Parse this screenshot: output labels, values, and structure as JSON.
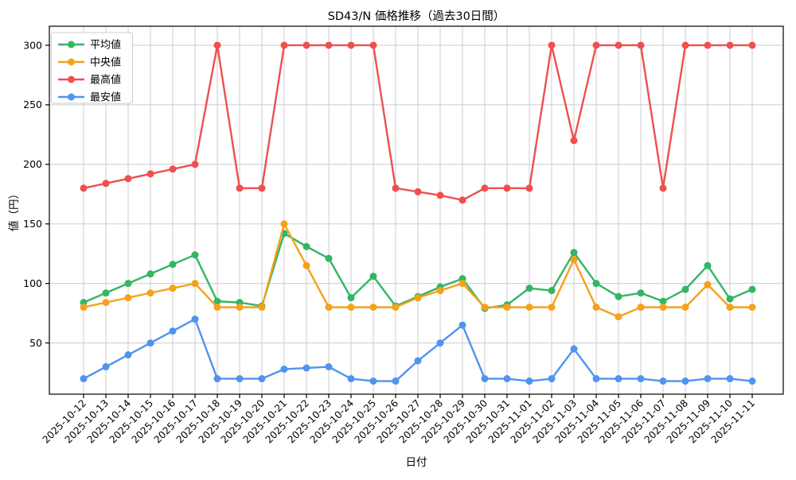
{
  "chart_data": {
    "type": "line",
    "title": "SD43/N 価格推移（過去30日間）",
    "xlabel": "日付",
    "ylabel": "値（円）",
    "grid": true,
    "legend_position": "upper-left",
    "x": [
      "2025-10-12",
      "2025-10-13",
      "2025-10-14",
      "2025-10-15",
      "2025-10-16",
      "2025-10-17",
      "2025-10-18",
      "2025-10-19",
      "2025-10-20",
      "2025-10-21",
      "2025-10-22",
      "2025-10-23",
      "2025-10-24",
      "2025-10-25",
      "2025-10-26",
      "2025-10-27",
      "2025-10-28",
      "2025-10-29",
      "2025-10-30",
      "2025-10-31",
      "2025-11-01",
      "2025-11-02",
      "2025-11-03",
      "2025-11-04",
      "2025-11-05",
      "2025-11-06",
      "2025-11-07",
      "2025-11-08",
      "2025-11-09",
      "2025-11-10",
      "2025-11-11"
    ],
    "yticks": [
      50,
      100,
      150,
      200,
      250,
      300
    ],
    "ylim": [
      7,
      316
    ],
    "series": [
      {
        "name": "平均値",
        "key": "avg",
        "color": "#33b564",
        "values": [
          84,
          92,
          100,
          108,
          116,
          124,
          85,
          84,
          81,
          142,
          131,
          121,
          88,
          106,
          81,
          89,
          97,
          104,
          79,
          82,
          96,
          94,
          126,
          100,
          89,
          92,
          85,
          95,
          115,
          87,
          95
        ]
      },
      {
        "name": "中央値",
        "key": "median",
        "color": "#f5a11c",
        "values": [
          80,
          84,
          88,
          92,
          96,
          100,
          80,
          80,
          80,
          150,
          115,
          80,
          80,
          80,
          80,
          88,
          94,
          100,
          80,
          80,
          80,
          80,
          120,
          80,
          72,
          80,
          80,
          80,
          99,
          80,
          80
        ]
      },
      {
        "name": "最高値",
        "key": "max",
        "color": "#ef4f4f",
        "values": [
          180,
          184,
          188,
          192,
          196,
          200,
          300,
          180,
          180,
          300,
          300,
          300,
          300,
          300,
          180,
          177,
          174,
          170,
          180,
          180,
          180,
          300,
          220,
          300,
          300,
          300,
          180,
          300,
          300,
          300,
          300
        ]
      },
      {
        "name": "最安値",
        "key": "min",
        "color": "#4f94ef",
        "values": [
          20,
          30,
          40,
          50,
          60,
          70,
          20,
          20,
          20,
          28,
          29,
          30,
          20,
          18,
          18,
          35,
          50,
          65,
          20,
          20,
          18,
          20,
          45,
          20,
          20,
          20,
          18,
          18,
          20,
          20,
          18
        ]
      }
    ]
  },
  "colors": {
    "grid": "#cccccc",
    "spine": "#000000",
    "background": "#ffffff",
    "legend_border": "#cccccc"
  }
}
